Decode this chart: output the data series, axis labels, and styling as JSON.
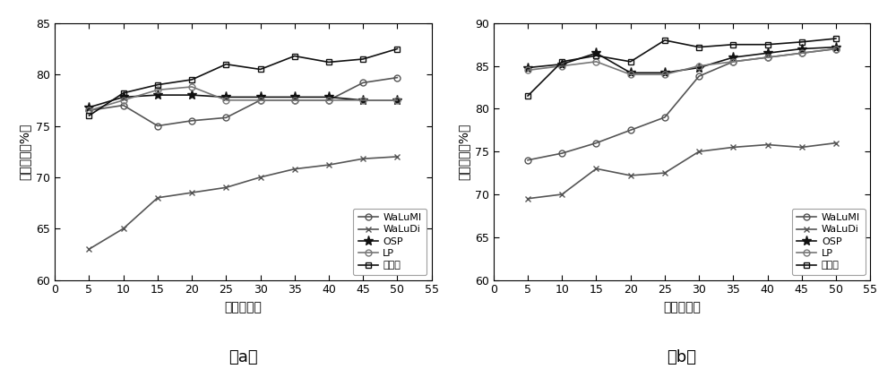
{
  "x": [
    5,
    10,
    15,
    20,
    25,
    30,
    35,
    40,
    45,
    50
  ],
  "chart_a": {
    "WaLuMI": [
      76.5,
      77.0,
      75.0,
      75.5,
      75.8,
      77.5,
      77.5,
      77.5,
      79.2,
      79.7
    ],
    "WaLuDi": [
      63.0,
      65.0,
      68.0,
      68.5,
      69.0,
      70.0,
      70.8,
      71.2,
      71.8,
      72.0
    ],
    "OSP": [
      76.8,
      77.8,
      78.0,
      78.0,
      77.8,
      77.8,
      77.8,
      77.8,
      77.5,
      77.5
    ],
    "LP": [
      76.5,
      77.5,
      78.5,
      78.8,
      77.5,
      77.5,
      77.5,
      77.5,
      77.5,
      77.5
    ],
    "benfaming": [
      76.0,
      78.2,
      79.0,
      79.5,
      81.0,
      80.5,
      81.8,
      81.2,
      81.5,
      82.5
    ]
  },
  "chart_b": {
    "WaLuMI": [
      74.0,
      74.8,
      76.0,
      77.5,
      79.0,
      83.8,
      85.5,
      86.0,
      86.5,
      87.0
    ],
    "WaLuDi": [
      69.5,
      70.0,
      73.0,
      72.2,
      72.5,
      75.0,
      75.5,
      75.8,
      75.5,
      76.0
    ],
    "OSP": [
      84.8,
      85.2,
      86.5,
      84.2,
      84.2,
      84.8,
      86.0,
      86.5,
      87.0,
      87.2
    ],
    "LP": [
      84.5,
      85.0,
      85.5,
      84.0,
      84.0,
      85.0,
      85.5,
      86.0,
      86.5,
      87.0
    ],
    "benfaming": [
      81.5,
      85.5,
      86.2,
      85.5,
      88.0,
      87.2,
      87.5,
      87.5,
      87.8,
      88.2
    ]
  },
  "ylim_a": [
    60,
    85
  ],
  "ylim_b": [
    60,
    90
  ],
  "yticks_a": [
    60,
    65,
    70,
    75,
    80,
    85
  ],
  "yticks_b": [
    60,
    65,
    70,
    75,
    80,
    85,
    90
  ],
  "xlabel": "选择波段数",
  "ylabel": "分类精度（%）",
  "legend_labels": [
    "WaLuMI",
    "WaLuDi",
    "OSP",
    "LP",
    "本发明"
  ],
  "caption_a": "（a）",
  "caption_b": "（b）"
}
